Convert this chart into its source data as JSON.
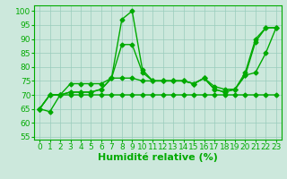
{
  "series": [
    [
      65,
      64,
      70,
      71,
      71,
      71,
      72,
      76,
      97,
      100,
      79,
      75,
      75,
      75,
      75,
      74,
      76,
      72,
      71,
      72,
      77,
      89,
      94,
      94
    ],
    [
      65,
      70,
      70,
      71,
      71,
      71,
      72,
      76,
      88,
      88,
      78,
      75,
      75,
      75,
      75,
      74,
      76,
      72,
      71,
      72,
      78,
      90,
      94,
      94
    ],
    [
      65,
      70,
      70,
      74,
      74,
      74,
      74,
      76,
      76,
      76,
      75,
      75,
      75,
      75,
      75,
      74,
      76,
      73,
      72,
      72,
      77,
      78,
      85,
      94
    ],
    [
      65,
      70,
      70,
      70,
      70,
      70,
      70,
      70,
      70,
      70,
      70,
      70,
      70,
      70,
      70,
      70,
      70,
      70,
      70,
      70,
      70,
      70,
      70,
      70
    ]
  ],
  "x": [
    0,
    1,
    2,
    3,
    4,
    5,
    6,
    7,
    8,
    9,
    10,
    11,
    12,
    13,
    14,
    15,
    16,
    17,
    18,
    19,
    20,
    21,
    22,
    23
  ],
  "line_color": "#00aa00",
  "bg_color": "#cce8dc",
  "grid_color": "#99ccbb",
  "xlabel": "Humidité relative (%)",
  "ylabel_ticks": [
    55,
    60,
    65,
    70,
    75,
    80,
    85,
    90,
    95,
    100
  ],
  "ylim": [
    54,
    102
  ],
  "xlim": [
    -0.5,
    23.5
  ],
  "xlabel_fontsize": 8,
  "tick_fontsize": 6.5,
  "line_width": 1.0,
  "marker_size": 2.5
}
